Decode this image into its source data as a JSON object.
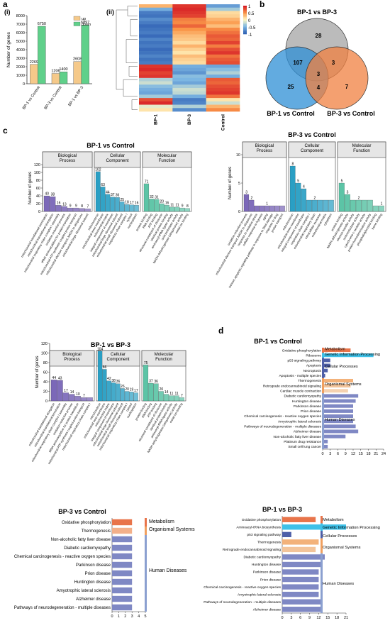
{
  "panels": {
    "a": {
      "letter": "a",
      "sub_i": "(i)",
      "sub_ii": "(ii)"
    },
    "b": {
      "letter": "b"
    },
    "c": {
      "letter": "c"
    },
    "d": {
      "letter": "d"
    }
  },
  "colors": {
    "up": "#f5c98a",
    "down": "#5fd08a",
    "bp": "#7b68b8",
    "cc": "#2a9fc4",
    "mf": "#5cc4a6",
    "venn_top": "#9e9e9e",
    "venn_left": "#2d8fd6",
    "venn_right": "#f08040",
    "kegg_bar": "#7f88c4",
    "kegg_sidebar": "#8ba0d0"
  },
  "chart_data": [
    {
      "id": "a_i",
      "type": "bar",
      "ylabel": "Number of genes",
      "ylim": [
        0,
        8000
      ],
      "yticks": [
        0,
        1000,
        2000,
        3000,
        4000,
        5000,
        6000,
        7000,
        8000
      ],
      "categories": [
        "BP-1 vs Control",
        "BP-3 vs Control",
        "BP-1 vs BP-3"
      ],
      "series": [
        {
          "name": "up",
          "values": [
            2269,
            1206,
            2608
          ]
        },
        {
          "name": "down",
          "values": [
            6750,
            1400,
            6897
          ]
        }
      ],
      "data_labels": [
        [
          "2269",
          "6750"
        ],
        [
          "1206",
          "1400"
        ],
        [
          "2608",
          "6897"
        ]
      ],
      "legend": "top-right"
    },
    {
      "id": "a_ii",
      "type": "heatmap",
      "columns": [
        "BP-1",
        "BP-3",
        "Control"
      ],
      "colorbar_ticks": [
        "1",
        "0.5",
        "0",
        "-0.5",
        "-1"
      ],
      "rows": [
        [
          0.35,
          0.9,
          -0.65
        ],
        [
          -0.55,
          0.95,
          -0.35
        ],
        [
          -0.85,
          0.9,
          0.15
        ],
        [
          -0.9,
          0.85,
          0.2
        ],
        [
          -0.75,
          0.6,
          0.35
        ],
        [
          -0.85,
          0.55,
          0.45
        ],
        [
          -0.95,
          0.7,
          0.3
        ],
        [
          -0.9,
          0.5,
          0.55
        ],
        [
          -0.85,
          0.4,
          0.65
        ],
        [
          -0.95,
          0.3,
          0.75
        ],
        [
          -0.8,
          0.25,
          0.7
        ],
        [
          -0.9,
          0.15,
          0.85
        ],
        [
          -0.85,
          0.35,
          0.6
        ],
        [
          -0.95,
          0.2,
          0.8
        ],
        [
          -0.9,
          0.1,
          0.9
        ],
        [
          -0.8,
          0.3,
          0.65
        ],
        [
          -0.9,
          0.2,
          0.75
        ],
        [
          -0.85,
          0.15,
          0.8
        ],
        [
          0.9,
          -0.55,
          -0.6
        ],
        [
          0.95,
          -0.6,
          -0.45
        ],
        [
          0.85,
          -0.7,
          -0.3
        ],
        [
          0.9,
          -0.45,
          -0.55
        ],
        [
          -0.3,
          -0.5,
          0.75
        ],
        [
          -0.2,
          -0.6,
          0.7
        ],
        [
          -0.45,
          -0.35,
          0.8
        ],
        [
          -0.55,
          -0.2,
          0.85
        ],
        [
          -0.6,
          -0.25,
          0.9
        ],
        [
          -0.35,
          -0.55,
          0.65
        ],
        [
          0.8,
          -0.85,
          0.1
        ],
        [
          0.95,
          -0.8,
          -0.2
        ],
        [
          -0.1,
          -0.3,
          0.35
        ],
        [
          0.1,
          -0.75,
          0.55
        ]
      ]
    },
    {
      "id": "b",
      "type": "venn",
      "sets": [
        "BP-1 vs BP-3",
        "BP-1 vs Control",
        "BP-3 vs Control"
      ],
      "regions": {
        "top_only": 28,
        "left_only": 25,
        "right_only": 7,
        "top_left": 107,
        "top_right": 3,
        "left_right": 4,
        "all": 3
      }
    },
    {
      "id": "c1",
      "type": "bar",
      "title": "BP-1 vs Control",
      "ylabel": "Number of genes",
      "ylim": [
        0,
        120
      ],
      "yticks": [
        0,
        20,
        40,
        60,
        80,
        100,
        120
      ],
      "groups": [
        {
          "name": "Biological Process",
          "values": [
            40,
            38,
            16,
            13,
            9,
            9,
            8,
            7
          ],
          "labels": [
            "40",
            "38",
            "16",
            "13",
            "9",
            "9",
            "8",
            "7"
          ],
          "categories": [
            "mitochondrial translational termination",
            "mitochondrial translational elongation",
            "mitochondrial respiratory chain complex I assembly",
            "oxidation-reduction process",
            "tRNA aminoacylation for protein translation",
            "mitochondrial ATP synthesis coupled proton transport",
            "mitochondrial electron transport, NADH to ubiquinone",
            "mitochondrial large ribosomal subunit"
          ]
        },
        {
          "name": "Cellular Component",
          "values": [
            102,
            63,
            44,
            37,
            36,
            25,
            18,
            17,
            16
          ],
          "labels": [
            "102",
            "63",
            "44",
            "37",
            "36",
            "25",
            "18",
            "17",
            "16"
          ],
          "categories": [
            "mitochondrion",
            "mitochondrial inner membrane",
            "mitochondrial matrix",
            "integral component of membrane",
            "mitochondrial large ribosomal subunit",
            "mitochondrial small ribosomal subunit",
            "respiratory chain complex I",
            "cytosol",
            "nucleoplasm"
          ]
        },
        {
          "name": "Molecular Function",
          "values": [
            71,
            32,
            31,
            20,
            16,
            11,
            11,
            9,
            8
          ],
          "labels": [
            "71",
            "32",
            "31",
            "20",
            "16",
            "11",
            "11",
            "9",
            "8"
          ],
          "categories": [
            "protein binding",
            "RNA binding",
            "ATP binding",
            "structural constituent of ribosome",
            "identical protein binding",
            "aminoacyl-tRNA ligase activity",
            "oxidoreductase activity",
            "NADH dehydrogenase (ubiquinone) activity",
            "metal ion binding"
          ]
        }
      ]
    },
    {
      "id": "c2",
      "type": "bar",
      "title": "BP-3 vs Control",
      "ylabel": "Number of genes",
      "ylim": [
        0,
        10
      ],
      "yticks": [
        0,
        5,
        10
      ],
      "groups": [
        {
          "name": "Biological Process",
          "values": [
            3,
            2,
            1,
            1,
            1,
            1,
            1,
            1
          ],
          "labels": [
            "3",
            "2",
            "",
            "",
            "1",
            "",
            "",
            ""
          ],
          "categories": [
            "oxidation-reduction process",
            "mitochondrial electron transport, NADH to ubiquinone",
            "response to oxidative stress",
            "cellular response to hypoxia",
            "aging",
            "intrinsic apoptotic signaling pathway in response to DNA damage",
            "response to drug",
            "proton transport"
          ]
        },
        {
          "name": "Cellular Component",
          "values": [
            8,
            5,
            4,
            2,
            2,
            2,
            2,
            2
          ],
          "labels": [
            "8",
            "5",
            "4",
            "",
            "2",
            "",
            "",
            ""
          ],
          "categories": [
            "mitochondrion",
            "mitochondrial inner membrane",
            "integral component of membrane",
            "respiratory chain complex I",
            "mitochondrial respiratory chain",
            "extracellular exosome",
            "mitochondrial matrix",
            "cytoplasm"
          ]
        },
        {
          "name": "Molecular Function",
          "values": [
            5,
            3,
            2,
            2,
            2,
            2,
            1,
            1
          ],
          "labels": [
            "5",
            "3",
            "",
            "2",
            "",
            "",
            "",
            "1"
          ],
          "categories": [
            "protein binding",
            "NADH dehydrogenase activity",
            "electron transfer activity",
            "oxidoreductase activity",
            "cytochrome-c oxidase activity",
            "protein homodimerization activity",
            "phosphatidylinositol binding",
            "heme binding"
          ]
        }
      ]
    },
    {
      "id": "c3",
      "type": "bar",
      "title": "BP-1 vs BP-3",
      "ylabel": "Number of genes",
      "ylim": [
        0,
        120
      ],
      "yticks": [
        0,
        20,
        40,
        60,
        80,
        100,
        120
      ],
      "groups": [
        {
          "name": "Biological Process",
          "values": [
            44,
            43,
            17,
            14,
            10,
            7,
            7
          ],
          "labels": [
            "44",
            "43",
            "17",
            "14",
            "10",
            "7",
            ""
          ],
          "categories": [
            "mitochondrial translational elongation",
            "mitochondrial translational termination",
            "mitochondrial respiratory chain complex I assembly",
            "oxidation-reduction process",
            "tRNA aminoacylation for protein translation",
            "mitochondrial ATP synthesis coupled proton transport",
            "mitochondrial respiratory chain complex I"
          ]
        },
        {
          "name": "Cellular Component",
          "values": [
            104,
            66,
            42,
            38,
            36,
            26,
            20,
            19,
            17
          ],
          "labels": [
            "104",
            "66",
            "42",
            "38",
            "36",
            "26",
            "20",
            "19",
            "17"
          ],
          "categories": [
            "mitochondrion",
            "mitochondrial inner membrane",
            "mitochondrial matrix",
            "integral component of membrane",
            "mitochondrial large ribosomal subunit",
            "mitochondrial small ribosomal subunit",
            "mitochondrial respiratory chain complex I",
            "cytosol",
            "nucleoplasm"
          ]
        },
        {
          "name": "Molecular Function",
          "values": [
            75,
            37,
            36,
            20,
            14,
            11,
            11,
            7
          ],
          "labels": [
            "75",
            "37",
            "36",
            "20",
            "14",
            "11",
            "11",
            "7"
          ],
          "categories": [
            "protein binding",
            "RNA binding",
            "ATP binding",
            "structural constituent of ribosome",
            "identical protein binding",
            "aminoacyl-tRNA ligase activity",
            "NADH dehydrogenase (ubiquinone) activity",
            "metal ion binding"
          ]
        }
      ]
    },
    {
      "id": "d1",
      "type": "bar",
      "orientation": "horizontal",
      "title": "BP-1 vs Control",
      "xlim": [
        0,
        24
      ],
      "xticks": [
        0,
        3,
        6,
        9,
        12,
        15,
        18,
        21,
        24
      ],
      "categories": [
        "Oxidative phosphorylation",
        "Ribosome",
        "p53 signaling pathway",
        "Apoptosis",
        "Necroptosis",
        "Apoptosis - multiple species",
        "Thermogenesis",
        "Retrograde endocannabinoid signaling",
        "Cardiac muscle contraction",
        "Diabetic cardiomyopathy",
        "Huntington disease",
        "Parkinson disease",
        "Prion disease",
        "Chemical carcinogenesis - reactive oxygen species",
        "Amyotrophic lateral sclerosis",
        "Pathways of neurodegeneration - multiple diseases",
        "Alzheimer disease",
        "Non-alcoholic fatty liver disease",
        "Platinum drug resistance",
        "Small cell lung cancer"
      ],
      "values": [
        11,
        20,
        3,
        3,
        2,
        1,
        12,
        11,
        10,
        14,
        13,
        12,
        12,
        12,
        12,
        13,
        14,
        9,
        2,
        2
      ],
      "bar_colors": [
        "#e8744a",
        "#3fc1e8",
        "#4e5fa8",
        "#4e5fa8",
        "#4e5fa8",
        "#4e5fa8",
        "#f3b27a",
        "#f3c49a",
        "#f5d2b0",
        "#7f88c4",
        "#7f88c4",
        "#7f88c4",
        "#7f88c4",
        "#7f88c4",
        "#7f88c4",
        "#7f88c4",
        "#7f88c4",
        "#7f88c4",
        "#7f88c4",
        "#7f88c4"
      ],
      "class_groups": [
        {
          "name": "Metabolism",
          "count": 1,
          "color": "#e8744a"
        },
        {
          "name": "Genetic Information Processing",
          "count": 1,
          "color": "#3fc1e8"
        },
        {
          "name": "Cellular Processes",
          "count": 4,
          "color": "#4e5fa8"
        },
        {
          "name": "Organismal Systems",
          "count": 3,
          "color": "#f0a060"
        },
        {
          "name": "Human Diseases",
          "count": 11,
          "color": "#8ba0d0"
        }
      ]
    },
    {
      "id": "d2",
      "type": "bar",
      "orientation": "horizontal",
      "title": "BP-3 vs Control",
      "xlim": [
        0,
        5
      ],
      "xticks": [
        0,
        1,
        2,
        3,
        4,
        5
      ],
      "categories": [
        "Oxidative phosphorylation",
        "Thermogenesis",
        "Non-alcoholic fatty liver disease",
        "Diabetic cardiomyopathy",
        "Chemical carcinogenesis - reactive oxygen species",
        "Parkinson disease",
        "Prion disease",
        "Huntington disease",
        "Amyotrophic lateral sclerosis",
        "Alzheimer disease",
        "Pathways of neurodegeneration - multiple diseases"
      ],
      "values": [
        3,
        3,
        3,
        3,
        3,
        3,
        3,
        3,
        3,
        3,
        3
      ],
      "bar_colors": [
        "#e8744a",
        "#f3b08a",
        "#7f88c4",
        "#7f88c4",
        "#7f88c4",
        "#7f88c4",
        "#7f88c4",
        "#7f88c4",
        "#7f88c4",
        "#7f88c4",
        "#7f88c4"
      ],
      "class_groups": [
        {
          "name": "Metabolism",
          "count": 1,
          "color": "#e8744a"
        },
        {
          "name": "Organismal Systems",
          "count": 1,
          "color": "#f0a060"
        },
        {
          "name": "Human Diseases",
          "count": 9,
          "color": "#8ba0d0"
        }
      ]
    },
    {
      "id": "d3",
      "type": "bar",
      "orientation": "horizontal",
      "title": "BP-1 vs BP-3",
      "xlim": [
        0,
        21
      ],
      "xticks": [
        0,
        3,
        6,
        9,
        12,
        15,
        18,
        21
      ],
      "categories": [
        "Oxidative phosphorylation",
        "Aminoacyl-tRNA biosynthesis",
        "p53 signaling pathway",
        "Thermogenesis",
        "Retrograde endocannabinoid signaling",
        "Diabetic cardiomyopathy",
        "Huntington disease",
        "Parkinson disease",
        "Prion disease",
        "Chemical carcinogenesis - reactive oxygen species",
        "Amyotrophic lateral sclerosis",
        "Pathways of neurodegeneration - multiple diseases",
        "Alzheimer disease"
      ],
      "values": [
        11,
        21,
        3,
        12,
        11,
        14,
        13,
        12,
        12,
        12,
        12,
        13,
        13
      ],
      "bar_colors": [
        "#e8744a",
        "#3fc1e8",
        "#4e5fa8",
        "#f3b27a",
        "#f3c49a",
        "#7f88c4",
        "#7f88c4",
        "#7f88c4",
        "#7f88c4",
        "#7f88c4",
        "#7f88c4",
        "#7f88c4",
        "#7f88c4"
      ],
      "class_groups": [
        {
          "name": "Metabolism",
          "count": 1,
          "color": "#e8744a"
        },
        {
          "name": "Genetic Information Processing",
          "count": 1,
          "color": "#3fc1e8"
        },
        {
          "name": "Cellular Processes",
          "count": 1,
          "color": "#4e5fa8"
        },
        {
          "name": "Organismal Systems",
          "count": 2,
          "color": "#f0a060"
        },
        {
          "name": "Human Diseases",
          "count": 8,
          "color": "#8ba0d0"
        }
      ]
    }
  ]
}
